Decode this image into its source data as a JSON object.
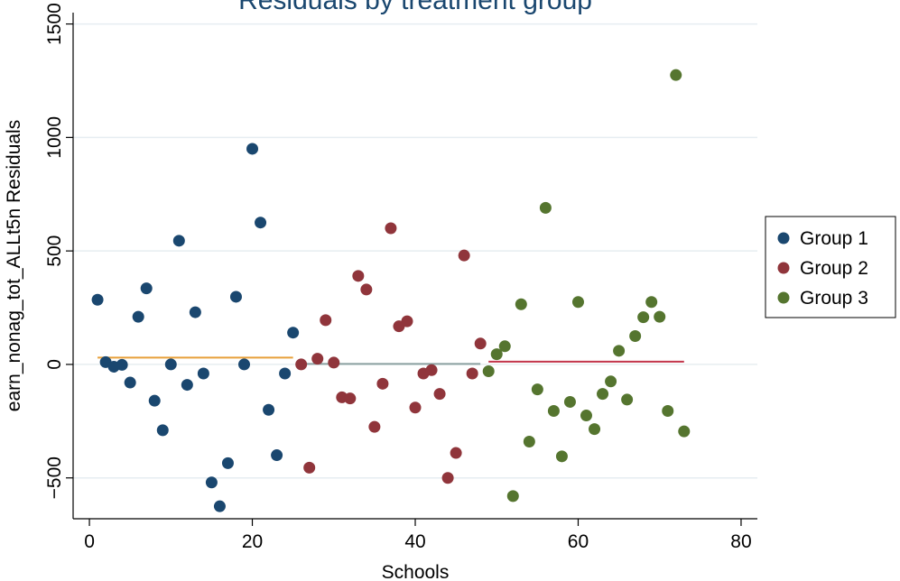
{
  "chart_data": {
    "type": "scatter",
    "title": "Residuals by treatment group",
    "xlabel": "Schools",
    "ylabel": "earn_nonag_tot_ALLt5n Residuals",
    "xlim": [
      -2,
      82
    ],
    "ylim": [
      -680,
      1550
    ],
    "xticks": [
      0,
      20,
      40,
      60,
      80
    ],
    "yticks": [
      -500,
      0,
      500,
      1000,
      1500
    ],
    "grid": "horizontal",
    "legend_position": "right",
    "series": [
      {
        "name": "Group 1",
        "color": "#1a476f",
        "points": [
          [
            1,
            285
          ],
          [
            2,
            10
          ],
          [
            3,
            -10
          ],
          [
            4,
            -2
          ],
          [
            5,
            -80
          ],
          [
            6,
            210
          ],
          [
            7,
            335
          ],
          [
            8,
            -160
          ],
          [
            9,
            -290
          ],
          [
            10,
            0
          ],
          [
            11,
            545
          ],
          [
            12,
            -90
          ],
          [
            13,
            230
          ],
          [
            14,
            -40
          ],
          [
            15,
            -520
          ],
          [
            16,
            -625
          ],
          [
            17,
            -435
          ],
          [
            18,
            298
          ],
          [
            19,
            0
          ],
          [
            20,
            950
          ],
          [
            21,
            625
          ],
          [
            22,
            -200
          ],
          [
            23,
            -400
          ],
          [
            24,
            -40
          ],
          [
            25,
            140
          ]
        ]
      },
      {
        "name": "Group 2",
        "color": "#90353b",
        "points": [
          [
            26,
            0
          ],
          [
            27,
            -455
          ],
          [
            28,
            25
          ],
          [
            29,
            195
          ],
          [
            30,
            8
          ],
          [
            31,
            -145
          ],
          [
            32,
            -150
          ],
          [
            33,
            390
          ],
          [
            34,
            330
          ],
          [
            35,
            -275
          ],
          [
            36,
            -85
          ],
          [
            37,
            600
          ],
          [
            38,
            168
          ],
          [
            39,
            190
          ],
          [
            40,
            -190
          ],
          [
            41,
            -40
          ],
          [
            42,
            -25
          ],
          [
            43,
            -130
          ],
          [
            44,
            -500
          ],
          [
            45,
            -390
          ],
          [
            46,
            480
          ],
          [
            47,
            -40
          ],
          [
            48,
            92
          ]
        ]
      },
      {
        "name": "Group 3",
        "color": "#55752f",
        "points": [
          [
            49,
            -30
          ],
          [
            50,
            45
          ],
          [
            51,
            80
          ],
          [
            52,
            -580
          ],
          [
            53,
            265
          ],
          [
            54,
            -340
          ],
          [
            55,
            -110
          ],
          [
            56,
            690
          ],
          [
            57,
            -205
          ],
          [
            58,
            -405
          ],
          [
            59,
            -165
          ],
          [
            60,
            275
          ],
          [
            61,
            -225
          ],
          [
            62,
            -285
          ],
          [
            63,
            -130
          ],
          [
            64,
            -75
          ],
          [
            65,
            60
          ],
          [
            66,
            -155
          ],
          [
            67,
            125
          ],
          [
            68,
            208
          ],
          [
            69,
            275
          ],
          [
            70,
            210
          ],
          [
            71,
            -205
          ],
          [
            72,
            1275
          ],
          [
            73,
            -295
          ]
        ]
      }
    ],
    "mean_lines": [
      {
        "x": [
          1,
          25
        ],
        "y": 30,
        "color": "#e8a03a"
      },
      {
        "x": [
          26,
          48
        ],
        "y": 2,
        "color": "#8aa0a0"
      },
      {
        "x": [
          49,
          73
        ],
        "y": 12,
        "color": "#c2344a"
      }
    ]
  }
}
